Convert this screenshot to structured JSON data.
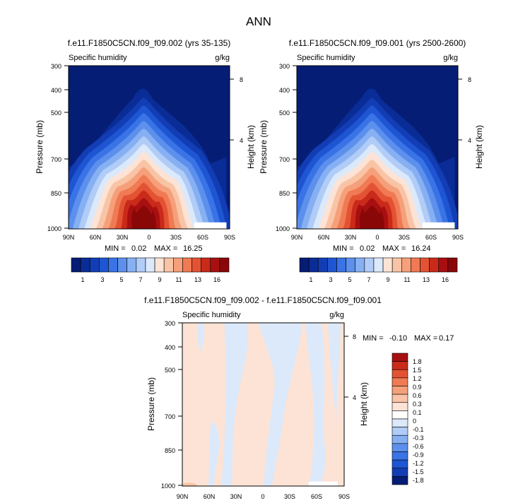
{
  "figure": {
    "title": "ANN",
    "colors": {
      "bg": "#ffffff",
      "frame": "#000000"
    }
  },
  "chart_data": [
    {
      "type": "heatmap",
      "subtype": "latitude-pressure contour",
      "title": "f.e11.F1850C5CN.f09_f09.002 (yrs 35-135)",
      "left_label": "Specific humidity",
      "right_label": "g/kg",
      "xlabel": "",
      "ylabel": "Pressure (mb)",
      "ylabel_right": "Height (km)",
      "x_ticks": [
        "90N",
        "60N",
        "30N",
        "0",
        "30S",
        "60S",
        "90S"
      ],
      "y_ticks": [
        "300",
        "400",
        "500",
        "700",
        "850",
        "1000"
      ],
      "y_ticks_right": [
        "8",
        "4"
      ],
      "ylim": [
        1000,
        300
      ],
      "min_label": "MIN = ",
      "min_value": "0.02",
      "max_label": "MAX = ",
      "max_value": "16.25",
      "peak_value": 16.25,
      "colorbar_labels": [
        "1",
        "3",
        "5",
        "7",
        "9",
        "11",
        "13",
        "16"
      ],
      "colorbar_colors": [
        "#051D75",
        "#0A2C96",
        "#123DB4",
        "#1E55D2",
        "#3A73E6",
        "#5C90EC",
        "#86B0F2",
        "#B0CCF7",
        "#DCE9FB",
        "#FCE3D5",
        "#F9C4A6",
        "#F5A07A",
        "#F07A53",
        "#E35333",
        "#C92A1A",
        "#A80F10",
        "#8A0708"
      ]
    },
    {
      "type": "heatmap",
      "subtype": "latitude-pressure contour",
      "title": "f.e11.F1850C5CN.f09_f09.001 (yrs 2500-2600)",
      "left_label": "Specific humidity",
      "right_label": "g/kg",
      "xlabel": "",
      "ylabel": "Pressure (mb)",
      "ylabel_right": "Height (km)",
      "x_ticks": [
        "90N",
        "60N",
        "30N",
        "0",
        "30S",
        "60S",
        "90S"
      ],
      "y_ticks": [
        "300",
        "400",
        "500",
        "700",
        "850",
        "1000"
      ],
      "y_ticks_right": [
        "8",
        "4"
      ],
      "ylim": [
        1000,
        300
      ],
      "min_label": "MIN = ",
      "min_value": "0.02",
      "max_label": "MAX = ",
      "max_value": "16.24",
      "peak_value": 16.24,
      "colorbar_labels": [
        "1",
        "3",
        "5",
        "7",
        "9",
        "11",
        "13",
        "16"
      ],
      "colorbar_colors": [
        "#051D75",
        "#0A2C96",
        "#123DB4",
        "#1E55D2",
        "#3A73E6",
        "#5C90EC",
        "#86B0F2",
        "#B0CCF7",
        "#DCE9FB",
        "#FCE3D5",
        "#F9C4A6",
        "#F5A07A",
        "#F07A53",
        "#E35333",
        "#C92A1A",
        "#A80F10",
        "#8A0708"
      ]
    },
    {
      "type": "heatmap",
      "subtype": "latitude-pressure difference",
      "title": "f.e11.F1850C5CN.f09_f09.002 - f.e11.F1850C5CN.f09_f09.001",
      "left_label": "Specific humidity",
      "right_label": "g/kg",
      "xlabel": "",
      "ylabel": "Pressure (mb)",
      "ylabel_right": "Height (km)",
      "x_ticks": [
        "90N",
        "60N",
        "30N",
        "0",
        "30S",
        "60S",
        "90S"
      ],
      "y_ticks": [
        "300",
        "400",
        "500",
        "700",
        "850",
        "1000"
      ],
      "y_ticks_right": [
        "8",
        "4"
      ],
      "ylim": [
        1000,
        300
      ],
      "min_label": "MIN = ",
      "min_value": "-0.10",
      "max_label": "MAX = ",
      "max_value": "0.17",
      "colorbar_labels": [
        "1.8",
        "1.5",
        "1.2",
        "0.9",
        "0.6",
        "0.3",
        "0.1",
        "0",
        "-0.1",
        "-0.3",
        "-0.6",
        "-0.9",
        "-1.2",
        "-1.5",
        "-1.8"
      ],
      "colorbar_colors": [
        "#A80F10",
        "#C92A1A",
        "#E35333",
        "#F07A53",
        "#F5A07A",
        "#F9C4A6",
        "#FCE3D5",
        "#FFFFFF",
        "#DCE9FB",
        "#B0CCF7",
        "#86B0F2",
        "#5C90EC",
        "#3A73E6",
        "#1E55D2",
        "#123DB4",
        "#051D75"
      ],
      "field_colors": {
        "positive": "#FCE3D5",
        "negative": "#DCE9FB"
      }
    }
  ]
}
